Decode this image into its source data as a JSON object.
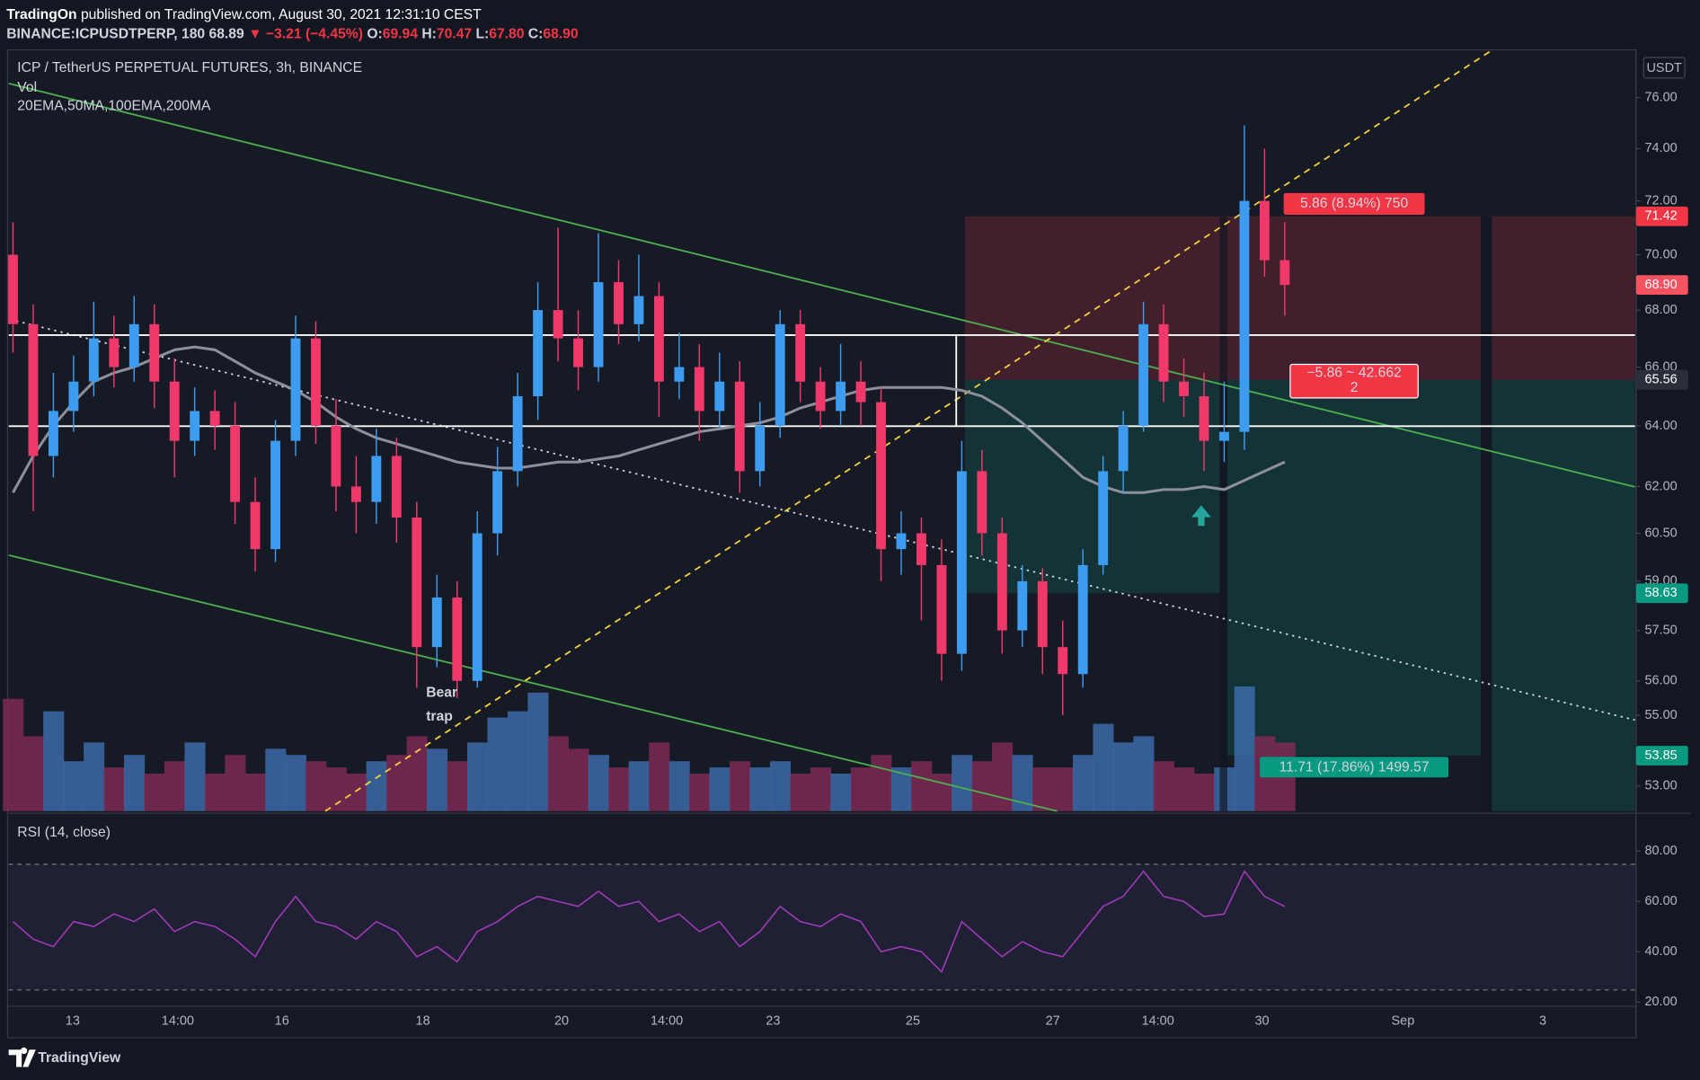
{
  "header": {
    "author": "TradingOn",
    "published": " published on TradingView.com, August 30, 2021 12:31:10 CEST",
    "symbol": "BINANCE:ICPUSDTPERP, 180",
    "last": "68.89",
    "change": "▼ −3.21 (−4.45%)",
    "ohlc": [
      {
        "label": "O:",
        "value": "69.94"
      },
      {
        "label": "H:",
        "value": "70.47"
      },
      {
        "label": "L:",
        "value": "67.80"
      },
      {
        "label": "C:",
        "value": "68.90"
      }
    ]
  },
  "chart_data": {
    "type": "candlestick",
    "title": "ICP / TetherUS PERPETUAL FUTURES, 3h, BINANCE",
    "volume_label": "Vol",
    "ma_label": "20EMA,50MA,100EMA,200MA",
    "rsi_label": "RSI (14, close)",
    "unit": "USDT",
    "open": [
      70,
      67.5,
      63,
      64.5,
      65.5,
      67,
      66,
      67.5,
      65.5,
      63.5,
      64.5,
      64,
      61.5,
      60,
      63.5,
      67,
      64,
      62,
      61.5,
      63,
      61,
      57,
      58.5,
      56,
      60.5,
      62.5,
      65,
      68,
      67,
      66,
      69,
      67.5,
      68.5,
      65.5,
      66,
      64.5,
      65.5,
      62.5,
      64,
      67.5,
      65.5,
      64.5,
      65.5,
      64.8,
      60,
      60.5,
      59.5,
      56.8,
      62.5,
      60.5,
      57.5,
      59,
      57,
      56.2,
      59.5,
      62.5,
      64,
      67.5,
      65.5,
      65,
      63.5,
      63.8,
      72,
      69.8
    ],
    "high": [
      71.2,
      68.2,
      65.8,
      66.4,
      68.3,
      67.8,
      68.5,
      68.2,
      66.3,
      65.3,
      65.2,
      64.8,
      62.3,
      64.2,
      67.8,
      67.6,
      64.9,
      63,
      63.9,
      63.6,
      61.5,
      59.2,
      59,
      61.2,
      63.3,
      65.8,
      69,
      71,
      68,
      70.8,
      69.8,
      70,
      69,
      67.2,
      66.8,
      66.5,
      66.2,
      64.8,
      68,
      68,
      66,
      66.8,
      66.2,
      65.3,
      61.2,
      61,
      60.3,
      63.5,
      63.2,
      61,
      59.5,
      59.4,
      57.8,
      60,
      63,
      64.5,
      68.3,
      68.2,
      66.3,
      65.8,
      65.5,
      74.9,
      74,
      71.2
    ],
    "low": [
      66.5,
      61.2,
      62.3,
      63.8,
      65,
      65.3,
      65.5,
      64.6,
      62.3,
      63,
      63.2,
      60.8,
      59.3,
      59.6,
      63,
      63.4,
      61.2,
      60.5,
      60.8,
      60.2,
      55.8,
      56.4,
      55.5,
      55.8,
      59.8,
      62,
      64.2,
      66.2,
      65.2,
      65.5,
      66.8,
      66.9,
      64.3,
      64.9,
      63.5,
      63.9,
      61.8,
      62,
      63.6,
      64.8,
      63.9,
      64,
      64,
      59,
      59.2,
      57.8,
      56,
      56.3,
      59.8,
      56.8,
      57,
      56.2,
      55,
      55.8,
      59.2,
      61.8,
      63.8,
      64.8,
      64.3,
      62.5,
      62.8,
      63.2,
      69.2,
      67.8
    ],
    "close": [
      67.5,
      63,
      64.5,
      65.5,
      67,
      66,
      67.5,
      65.5,
      63.5,
      64.5,
      64,
      61.5,
      60,
      63.5,
      67,
      64,
      62,
      61.5,
      63,
      61,
      57,
      58.5,
      56,
      60.5,
      62.5,
      65,
      68,
      67,
      66,
      69,
      67.5,
      68.5,
      65.5,
      66,
      64.5,
      65.5,
      62.5,
      64,
      67.5,
      65.5,
      64.5,
      65.5,
      64.8,
      60,
      60.5,
      59.5,
      56.8,
      62.5,
      60.5,
      57.5,
      59,
      57,
      56.2,
      59.5,
      62.5,
      64,
      67.5,
      65.5,
      65,
      63.5,
      63.8,
      72,
      69.8,
      68.9
    ],
    "ma": [
      61.8,
      63,
      64,
      64.8,
      65.5,
      65.8,
      66,
      66.3,
      66.6,
      66.7,
      66.6,
      66.2,
      65.8,
      65.5,
      65.2,
      64.8,
      64.3,
      63.9,
      63.6,
      63.4,
      63.2,
      63,
      62.8,
      62.7,
      62.6,
      62.6,
      62.7,
      62.8,
      62.8,
      62.9,
      63,
      63.2,
      63.4,
      63.6,
      63.8,
      63.9,
      64,
      64.1,
      64.3,
      64.6,
      64.8,
      65,
      65.2,
      65.3,
      65.3,
      65.3,
      65.3,
      65.2,
      65,
      64.6,
      64.1,
      63.5,
      62.9,
      62.3,
      62,
      61.8,
      61.8,
      61.9,
      61.9,
      62,
      61.9,
      62.2,
      62.5,
      62.8
    ],
    "volume": [
      90,
      60,
      80,
      40,
      55,
      35,
      45,
      30,
      40,
      55,
      30,
      45,
      30,
      50,
      45,
      40,
      35,
      30,
      40,
      45,
      60,
      50,
      40,
      55,
      75,
      80,
      95,
      60,
      50,
      45,
      35,
      40,
      55,
      40,
      30,
      35,
      40,
      35,
      40,
      30,
      35,
      30,
      35,
      45,
      35,
      40,
      30,
      45,
      40,
      55,
      45,
      35,
      35,
      45,
      70,
      55,
      60,
      40,
      35,
      30,
      35,
      100,
      60,
      55
    ],
    "rsi": [
      52,
      45,
      42,
      52,
      50,
      55,
      52,
      57,
      48,
      52,
      50,
      45,
      38,
      52,
      62,
      52,
      50,
      45,
      52,
      48,
      38,
      42,
      36,
      48,
      52,
      58,
      62,
      60,
      58,
      64,
      58,
      60,
      52,
      55,
      48,
      52,
      42,
      48,
      58,
      52,
      50,
      55,
      52,
      40,
      42,
      40,
      32,
      52,
      45,
      38,
      44,
      40,
      38,
      48,
      58,
      62,
      72,
      62,
      60,
      54,
      55,
      72,
      62,
      58
    ],
    "log_scale": true,
    "ylim": [
      52.31,
      77.88
    ],
    "yticks": [
      {
        "value": 76,
        "label": "76.00"
      },
      {
        "value": 74,
        "label": "74.00"
      },
      {
        "value": 72,
        "label": "72.00"
      },
      {
        "value": 70,
        "label": "70.00"
      },
      {
        "value": 68,
        "label": "68.00"
      },
      {
        "value": 66,
        "label": "66.00"
      },
      {
        "value": 64,
        "label": "64.00"
      },
      {
        "value": 62,
        "label": "62.00"
      },
      {
        "value": 60.5,
        "label": "60.50"
      },
      {
        "value": 59,
        "label": "59.00"
      },
      {
        "value": 57.5,
        "label": "57.50"
      },
      {
        "value": 56,
        "label": "56.00"
      },
      {
        "value": 55,
        "label": "55.00"
      },
      {
        "value": 53,
        "label": "53.00"
      }
    ],
    "rsi_ylim": [
      18.3,
      94.2
    ],
    "rsi_yticks": [
      {
        "value": 80,
        "label": "80.00"
      },
      {
        "value": 60,
        "label": "60.00"
      },
      {
        "value": 40,
        "label": "40.00"
      },
      {
        "value": 20,
        "label": "20.00"
      }
    ],
    "xticks": [
      "13",
      "14:00",
      "16",
      "18",
      "20",
      "14:00",
      "23",
      "25",
      "27",
      "14:00",
      "30",
      "Sep",
      "3"
    ],
    "price_labels": [
      71.42,
      {
        "value": 68.9,
        "label": "68.90"
      },
      65.56,
      58.63,
      53.85
    ],
    "price_label_colors": [
      "#f23645",
      "#f7525f",
      "#2a2e39",
      "#089981",
      "#089981"
    ],
    "up_color": "#3d9cf0",
    "down_color": "#f0386b",
    "volume_up_color": "#3c6ba8",
    "volume_down_color": "#7c2a54",
    "ma_color": "#8d9099",
    "rsi_color": "#a13ab7",
    "grid": false,
    "annotations": {
      "bear_trap": [
        "Bear",
        "trap"
      ],
      "risk_label": "5.86 (8.94%) 750",
      "stats": [
        "−5.86 ~ 42.662",
        "2"
      ],
      "target_label": "11.71 (17.86%) 1499.57"
    }
  },
  "footer": {
    "brand": "TradingView"
  }
}
